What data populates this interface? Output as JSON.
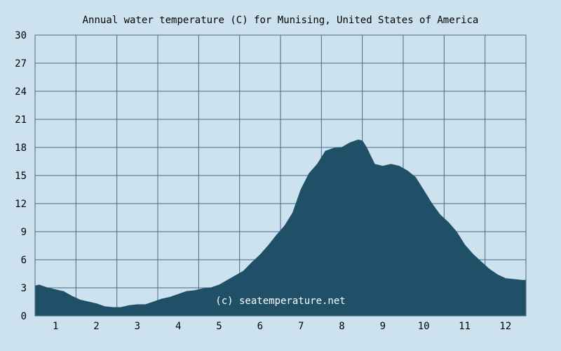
{
  "colors": {
    "background": "#cce3ef",
    "plot_background": "#cce3ef",
    "grid": "#4a6a84",
    "area_fill": "#1f5068",
    "text": "#000000",
    "watermark": "#ffffff"
  },
  "chart_data": {
    "type": "area",
    "title": "Annual water temperature (C) for Munising, United States of America",
    "xlabel": "",
    "ylabel": "",
    "x_ticks": [
      "1",
      "2",
      "3",
      "4",
      "5",
      "6",
      "7",
      "8",
      "9",
      "10",
      "11",
      "12"
    ],
    "y_ticks": [
      0,
      3,
      6,
      9,
      12,
      15,
      18,
      21,
      24,
      27,
      30
    ],
    "ylim": [
      0,
      30
    ],
    "xlim": [
      0.5,
      12.5
    ],
    "grid": true,
    "annotation": "(c) seatemperature.net",
    "series": [
      {
        "x": [
          0.5,
          0.6,
          0.8,
          1.0,
          1.2,
          1.4,
          1.6,
          1.8,
          2.0,
          2.2,
          2.4,
          2.6,
          2.8,
          3.0,
          3.2,
          3.4,
          3.6,
          3.8,
          4.0,
          4.2,
          4.4,
          4.6,
          4.8,
          5.0,
          5.2,
          5.4,
          5.6,
          5.8,
          6.0,
          6.2,
          6.4,
          6.6,
          6.8,
          7.0,
          7.2,
          7.4,
          7.6,
          7.8,
          8.0,
          8.2,
          8.4,
          8.5,
          8.6,
          8.8,
          9.0,
          9.2,
          9.4,
          9.6,
          9.8,
          10.0,
          10.2,
          10.4,
          10.6,
          10.8,
          11.0,
          11.2,
          11.4,
          11.6,
          11.8,
          12.0,
          12.2,
          12.4,
          12.5
        ],
        "y": [
          3.2,
          3.3,
          3.0,
          2.8,
          2.6,
          2.1,
          1.7,
          1.5,
          1.3,
          1.0,
          0.9,
          0.9,
          1.1,
          1.2,
          1.2,
          1.5,
          1.8,
          2.0,
          2.3,
          2.6,
          2.7,
          2.9,
          3.0,
          3.3,
          3.8,
          4.3,
          4.8,
          5.7,
          6.5,
          7.5,
          8.6,
          9.6,
          11.0,
          13.5,
          15.2,
          16.2,
          17.6,
          17.9,
          18.0,
          18.5,
          18.8,
          18.7,
          18.0,
          16.2,
          16.0,
          16.2,
          16.0,
          15.5,
          14.8,
          13.4,
          12.0,
          10.8,
          10.0,
          9.0,
          7.6,
          6.6,
          5.8,
          5.0,
          4.4,
          4.0,
          3.9,
          3.8,
          3.8
        ]
      }
    ]
  }
}
